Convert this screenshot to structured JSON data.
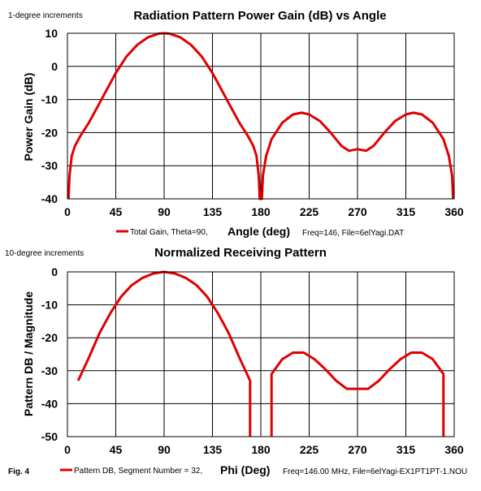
{
  "figure_label": "Fig. 4",
  "chart_data": [
    {
      "type": "line",
      "note": "1-degree increments",
      "title": "Radiation Pattern Power Gain (dB) vs Angle",
      "xlabel": "Angle (deg)",
      "ylabel": "Power Gain (dB)",
      "xlim": [
        0,
        360
      ],
      "ylim": [
        -40,
        10
      ],
      "xticks": [
        0,
        45,
        90,
        135,
        180,
        225,
        270,
        315,
        360
      ],
      "yticks": [
        10,
        0,
        -10,
        -20,
        -30,
        -40
      ],
      "grid": true,
      "legend": "bottom",
      "footnote": "Freq=146, File=6elYagi.DAT",
      "series_color": "#e00000",
      "series": [
        {
          "name": "Total Gain, Theta=90,",
          "points": [
            [
              1,
              -40
            ],
            [
              2,
              -33
            ],
            [
              4,
              -27
            ],
            [
              7,
              -24
            ],
            [
              12,
              -21
            ],
            [
              20,
              -17
            ],
            [
              30,
              -11
            ],
            [
              40,
              -5
            ],
            [
              45,
              -2
            ],
            [
              55,
              3
            ],
            [
              65,
              6.5
            ],
            [
              75,
              8.8
            ],
            [
              85,
              9.9
            ],
            [
              90,
              10
            ],
            [
              95,
              9.9
            ],
            [
              105,
              8.8
            ],
            [
              115,
              6.5
            ],
            [
              125,
              3
            ],
            [
              135,
              -2
            ],
            [
              140,
              -5
            ],
            [
              150,
              -11
            ],
            [
              160,
              -17
            ],
            [
              168,
              -21
            ],
            [
              173,
              -24
            ],
            [
              176,
              -27
            ],
            [
              178,
              -33
            ],
            [
              179,
              -40
            ],
            [
              181,
              -40
            ],
            [
              182,
              -33
            ],
            [
              185,
              -27
            ],
            [
              190,
              -22
            ],
            [
              200,
              -17
            ],
            [
              210,
              -14.5
            ],
            [
              218,
              -14
            ],
            [
              225,
              -14.5
            ],
            [
              235,
              -16.5
            ],
            [
              245,
              -20
            ],
            [
              255,
              -24
            ],
            [
              262,
              -25.5
            ],
            [
              270,
              -25
            ],
            [
              278,
              -25.5
            ],
            [
              285,
              -24
            ],
            [
              295,
              -20
            ],
            [
              305,
              -16.5
            ],
            [
              315,
              -14.5
            ],
            [
              322,
              -14
            ],
            [
              330,
              -14.5
            ],
            [
              340,
              -17
            ],
            [
              350,
              -22
            ],
            [
              355,
              -27
            ],
            [
              358,
              -33
            ],
            [
              359,
              -40
            ]
          ]
        }
      ]
    },
    {
      "type": "line",
      "note": "10-degree increments",
      "title": "Normalized Receiving Pattern",
      "xlabel": "Phi (Deg)",
      "ylabel": "Pattern DB / Magnitude",
      "xlim": [
        0,
        360
      ],
      "ylim": [
        -50,
        0
      ],
      "xticks": [
        0,
        45,
        90,
        135,
        180,
        225,
        270,
        315,
        360
      ],
      "yticks": [
        0,
        -10,
        -20,
        -30,
        -40,
        -50
      ],
      "grid": true,
      "legend": "bottom",
      "footnote": "Freq=146.00 MHz, File=6elYagi-EX1PT1PT-1.NOU",
      "series_color": "#e00000",
      "series": [
        {
          "name": "Pattern DB, Segment Number = 32,",
          "segments": [
            [
              [
                10,
                -33
              ],
              [
                20,
                -26
              ],
              [
                30,
                -18.5
              ],
              [
                40,
                -12.5
              ],
              [
                50,
                -7.5
              ],
              [
                60,
                -4
              ],
              [
                70,
                -1.8
              ],
              [
                80,
                -0.5
              ],
              [
                90,
                0
              ],
              [
                100,
                -0.5
              ],
              [
                110,
                -1.8
              ],
              [
                120,
                -4
              ],
              [
                130,
                -7.5
              ],
              [
                140,
                -12.5
              ],
              [
                150,
                -18.5
              ],
              [
                160,
                -26
              ],
              [
                170,
                -33
              ],
              [
                170,
                -50
              ]
            ],
            [
              [
                190,
                -50
              ],
              [
                190,
                -31
              ],
              [
                200,
                -26.5
              ],
              [
                210,
                -24.5
              ],
              [
                220,
                -24.5
              ],
              [
                230,
                -26.5
              ],
              [
                240,
                -29.5
              ],
              [
                250,
                -33
              ],
              [
                260,
                -35.5
              ],
              [
                270,
                -35.5
              ],
              [
                280,
                -35.5
              ],
              [
                290,
                -33
              ],
              [
                300,
                -29.5
              ],
              [
                310,
                -26.5
              ],
              [
                320,
                -24.5
              ],
              [
                330,
                -24.5
              ],
              [
                340,
                -26.5
              ],
              [
                350,
                -31
              ],
              [
                350,
                -50
              ]
            ]
          ]
        }
      ]
    }
  ]
}
